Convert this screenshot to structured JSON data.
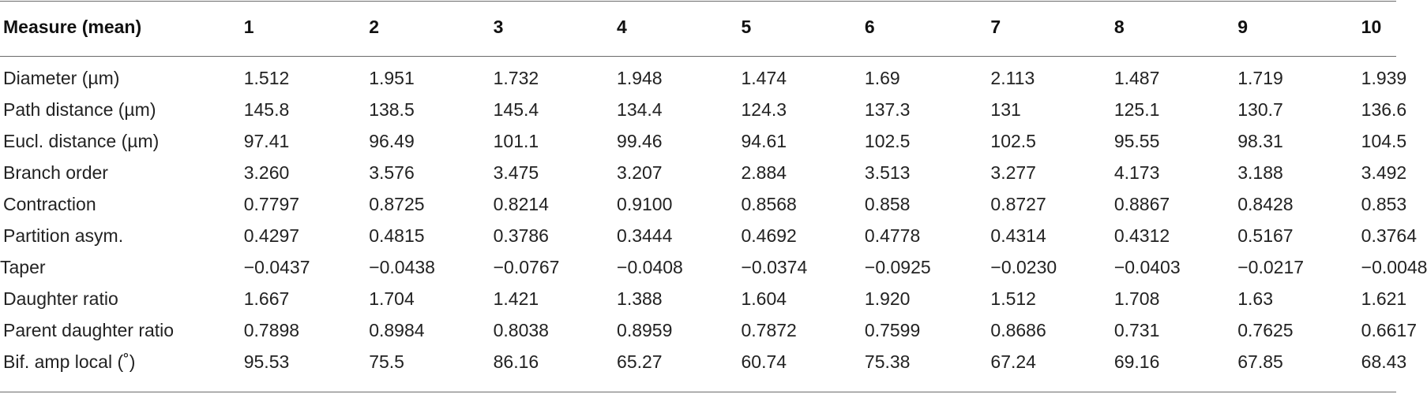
{
  "table": {
    "headers": [
      "Measure (mean)",
      "1",
      "2",
      "3",
      "4",
      "5",
      "6",
      "7",
      "8",
      "9",
      "10"
    ],
    "rows": [
      {
        "label": "Diameter (µm)",
        "values": [
          "1.512",
          "1.951",
          "1.732",
          "1.948",
          "1.474",
          "1.69",
          "2.113",
          "1.487",
          "1.719",
          "1.939"
        ]
      },
      {
        "label": "Path distance (µm)",
        "values": [
          "145.8",
          "138.5",
          "145.4",
          "134.4",
          "124.3",
          "137.3",
          "131",
          "125.1",
          "130.7",
          "136.6"
        ]
      },
      {
        "label": "Eucl. distance (µm)",
        "values": [
          "97.41",
          "96.49",
          "101.1",
          "99.46",
          "94.61",
          "102.5",
          "102.5",
          "95.55",
          "98.31",
          "104.5"
        ]
      },
      {
        "label": "Branch order",
        "values": [
          "3.260",
          "3.576",
          "3.475",
          "3.207",
          "2.884",
          "3.513",
          "3.277",
          "4.173",
          "3.188",
          "3.492"
        ]
      },
      {
        "label": "Contraction",
        "values": [
          "0.7797",
          "0.8725",
          "0.8214",
          "0.9100",
          "0.8568",
          "0.858",
          "0.8727",
          "0.8867",
          "0.8428",
          "0.853"
        ]
      },
      {
        "label": "Partition asym.",
        "values": [
          "0.4297",
          "0.4815",
          "0.3786",
          "0.3444",
          "0.4692",
          "0.4778",
          "0.4314",
          "0.4312",
          "0.5167",
          "0.3764"
        ]
      },
      {
        "label": "Taper",
        "values": [
          "−0.0437",
          "−0.0438",
          "−0.0767",
          "−0.0408",
          "−0.0374",
          "−0.0925",
          "−0.0230",
          "−0.0403",
          "−0.0217",
          "−0.0048"
        ]
      },
      {
        "label": "Daughter ratio",
        "values": [
          "1.667",
          "1.704",
          "1.421",
          "1.388",
          "1.604",
          "1.920",
          "1.512",
          "1.708",
          "1.63",
          "1.621"
        ]
      },
      {
        "label": "Parent daughter ratio",
        "values": [
          "0.7898",
          "0.8984",
          "0.8038",
          "0.8959",
          "0.7872",
          "0.7599",
          "0.8686",
          "0.731",
          "0.7625",
          "0.6617"
        ]
      },
      {
        "label": "Bif. amp local (˚)",
        "values": [
          "95.53",
          "75.5",
          "86.16",
          "65.27",
          "60.74",
          "75.38",
          "67.24",
          "69.16",
          "67.85",
          "68.43"
        ]
      }
    ]
  }
}
